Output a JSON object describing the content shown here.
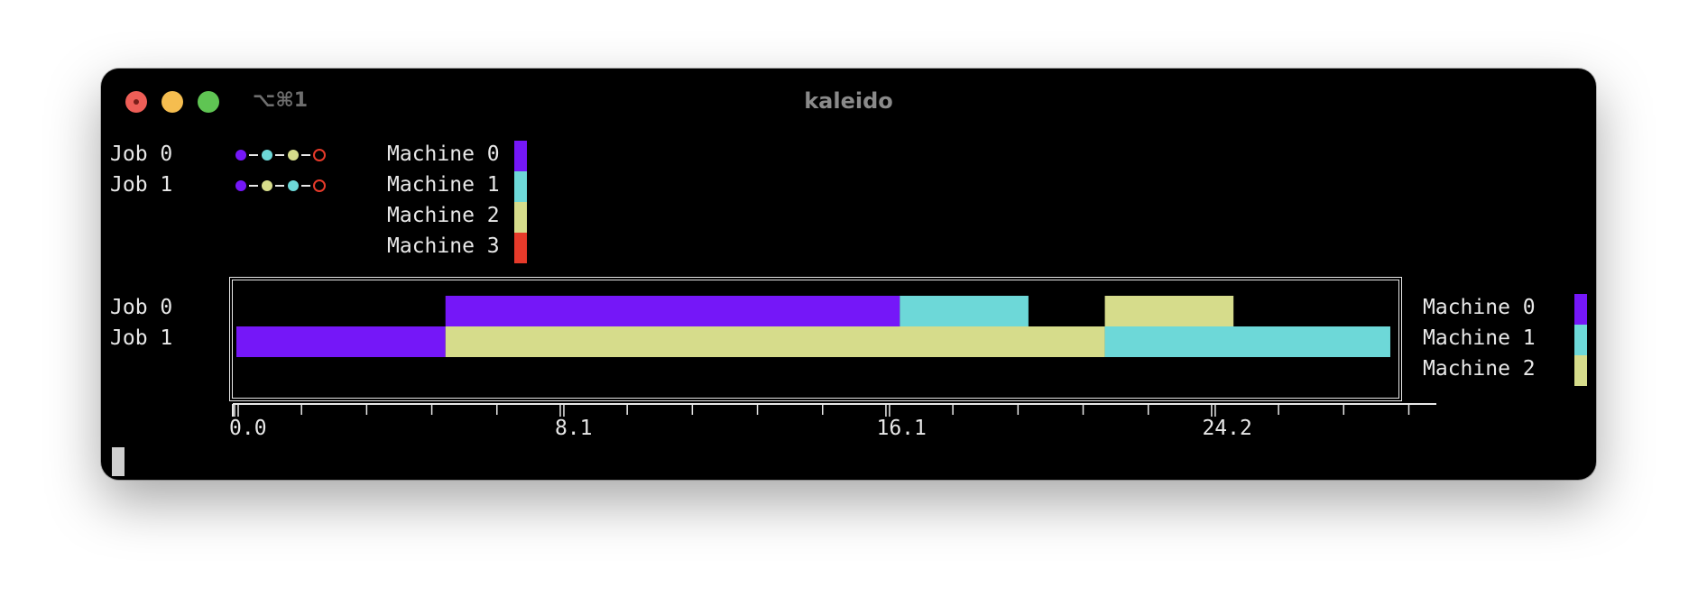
{
  "window": {
    "title": "kaleido",
    "tab_shortcut": "⌥⌘1"
  },
  "colors": {
    "machine_0": "#7517f8",
    "machine_1": "#6dd8d8",
    "machine_2": "#d6dc8b",
    "machine_3": "#e63a2a",
    "terminal_bg": "#000000",
    "terminal_fg": "#e8e8e8"
  },
  "top_legend": {
    "jobs": [
      {
        "label": "Job 0",
        "route": [
          "Machine 0",
          "Machine 1",
          "Machine 2",
          "Machine 3"
        ]
      },
      {
        "label": "Job 1",
        "route": [
          "Machine 0",
          "Machine 2",
          "Machine 1",
          "Machine 3"
        ]
      }
    ],
    "machines": [
      "Machine 0",
      "Machine 1",
      "Machine 2",
      "Machine 3"
    ]
  },
  "chart_data": {
    "type": "gantt",
    "rows": [
      "Job 0",
      "Job 1"
    ],
    "x_ticks": [
      "0.0",
      "8.1",
      "16.1",
      "24.2"
    ],
    "x_tick_values": [
      0,
      8.1,
      16.1,
      24.2
    ],
    "xlim": [
      0,
      29.8
    ],
    "tasks": [
      {
        "job": "Job 0",
        "machine": "Machine 0",
        "start": 5.2,
        "end": 16.5
      },
      {
        "job": "Job 0",
        "machine": "Machine 1",
        "start": 16.5,
        "end": 19.7
      },
      {
        "job": "Job 0",
        "machine": "Machine 2",
        "start": 21.6,
        "end": 24.8
      },
      {
        "job": "Job 1",
        "machine": "Machine 0",
        "start": 0.0,
        "end": 5.2
      },
      {
        "job": "Job 1",
        "machine": "Machine 2",
        "start": 5.2,
        "end": 21.6
      },
      {
        "job": "Job 1",
        "machine": "Machine 1",
        "start": 21.6,
        "end": 28.7
      }
    ],
    "legend": [
      "Machine 0",
      "Machine 1",
      "Machine 2"
    ],
    "legend_position": "right"
  }
}
